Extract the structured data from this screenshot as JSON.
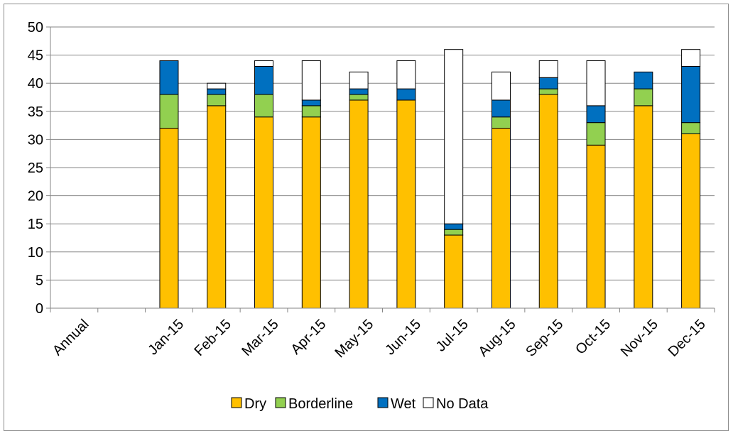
{
  "chart_data": {
    "type": "bar",
    "stacked": true,
    "categories": [
      "Annual",
      "",
      "Jan-15",
      "Feb-15",
      "Mar-15",
      "Apr-15",
      "May-15",
      "Jun-15",
      "Jul-15",
      "Aug-15",
      "Sep-15",
      "Oct-15",
      "Nov-15",
      "Dec-15"
    ],
    "series": [
      {
        "name": "Dry",
        "color": "#ffc000",
        "values": [
          0,
          0,
          32,
          36,
          34,
          34,
          37,
          37,
          13,
          32,
          38,
          29,
          36,
          31
        ]
      },
      {
        "name": "Borderline",
        "color": "#92d050",
        "values": [
          0,
          0,
          6,
          2,
          4,
          2,
          1,
          0,
          1,
          2,
          1,
          4,
          3,
          2
        ]
      },
      {
        "name": "Wet",
        "color": "#0070c0",
        "values": [
          0,
          0,
          6,
          1,
          5,
          1,
          1,
          2,
          1,
          3,
          2,
          3,
          3,
          10
        ]
      },
      {
        "name": "No Data",
        "color": "#ffffff",
        "values": [
          0,
          0,
          0,
          1,
          1,
          7,
          3,
          5,
          31,
          5,
          3,
          8,
          0,
          3
        ]
      }
    ],
    "y_ticks": [
      "0",
      "5",
      "10",
      "15",
      "20",
      "25",
      "30",
      "35",
      "40",
      "45",
      "50"
    ],
    "ylim": [
      0,
      50
    ],
    "grid": true,
    "legend_position": "bottom"
  }
}
